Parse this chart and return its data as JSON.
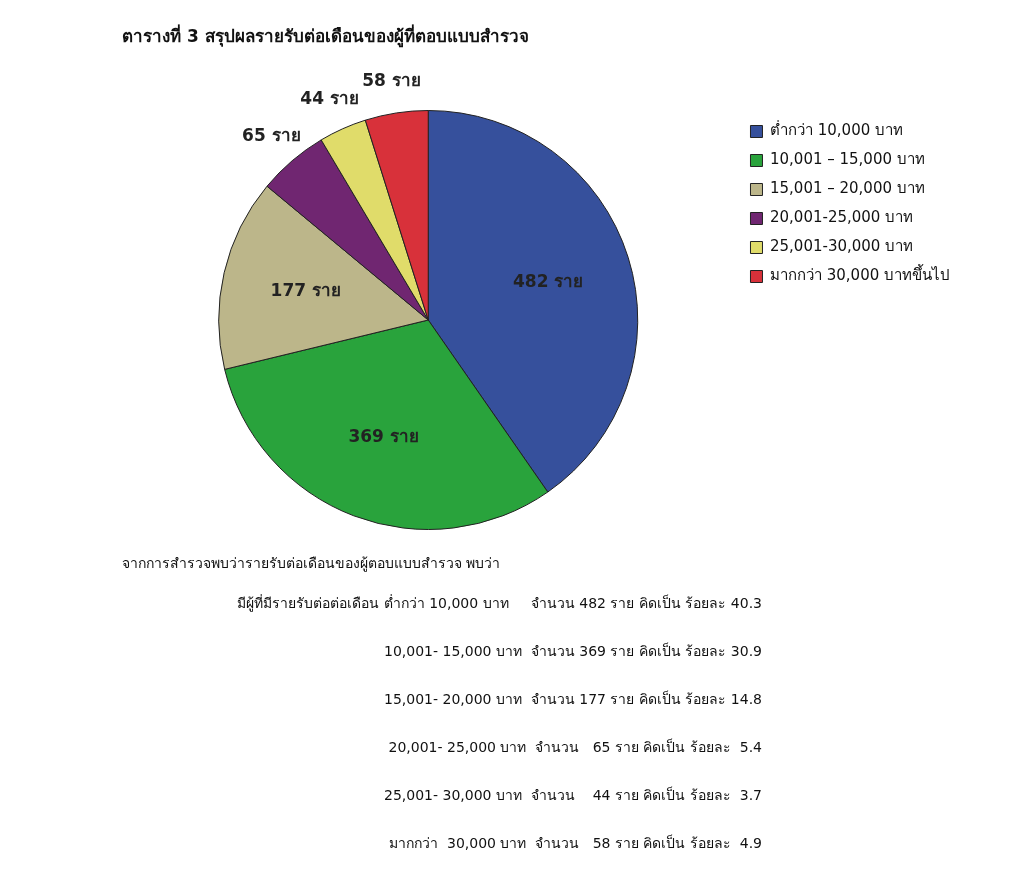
{
  "chart_data": {
    "type": "pie",
    "title": "ตารางที่ 3 สรุปผลรายรับต่อเดือนของผู้ที่ตอบแบบสำรวจ",
    "categories": [
      "ต่ำกว่า 10,000 บาท",
      "10,001 – 15,000 บาท",
      "15,001 – 20,000 บาท",
      "20,001-25,000 บาท",
      "25,001-30,000 บาท",
      "มากกว่า 30,000 บาทขึ้นไป"
    ],
    "values": [
      482,
      369,
      177,
      65,
      44,
      58
    ],
    "colors": [
      "#36509c",
      "#29a33c",
      "#bcb68a",
      "#702671",
      "#e0dc6a",
      "#d8313a"
    ],
    "value_labels": [
      "482 ราย",
      "369 ราย",
      "177 ราย",
      "65 ราย",
      "44 ราย",
      "58 ราย"
    ],
    "legend": "top right",
    "annotations": [
      "จากการสำรวจพบว่ารายรับต่อเดือนของผู้ตอบแบบสำรวจ พบว่า",
      "มีผู้ที่มีรายรับต่อต่อเดือน ต่ำกว่า 10,000 บาท     จำนวน 482 ราย คิดเป็น ร้อยละ 40.3",
      "10,001- 15,000 บาท  จำนวน 369 ราย คิดเป็น ร้อยละ 30.9",
      "15,001- 20,000 บาท  จำนวน 177 ราย คิดเป็น ร้อยละ 14.8",
      "20,001- 25,000 บาท  จำนวน   65 ราย คิดเป็น ร้อยละ  5.4",
      "25,001- 30,000 บาท  จำนวน    44 ราย คิดเป็น ร้อยละ  3.7",
      "มากกว่า  30,000 บาท  จำนวน   58 ราย คิดเป็น ร้อยละ  4.9"
    ]
  }
}
